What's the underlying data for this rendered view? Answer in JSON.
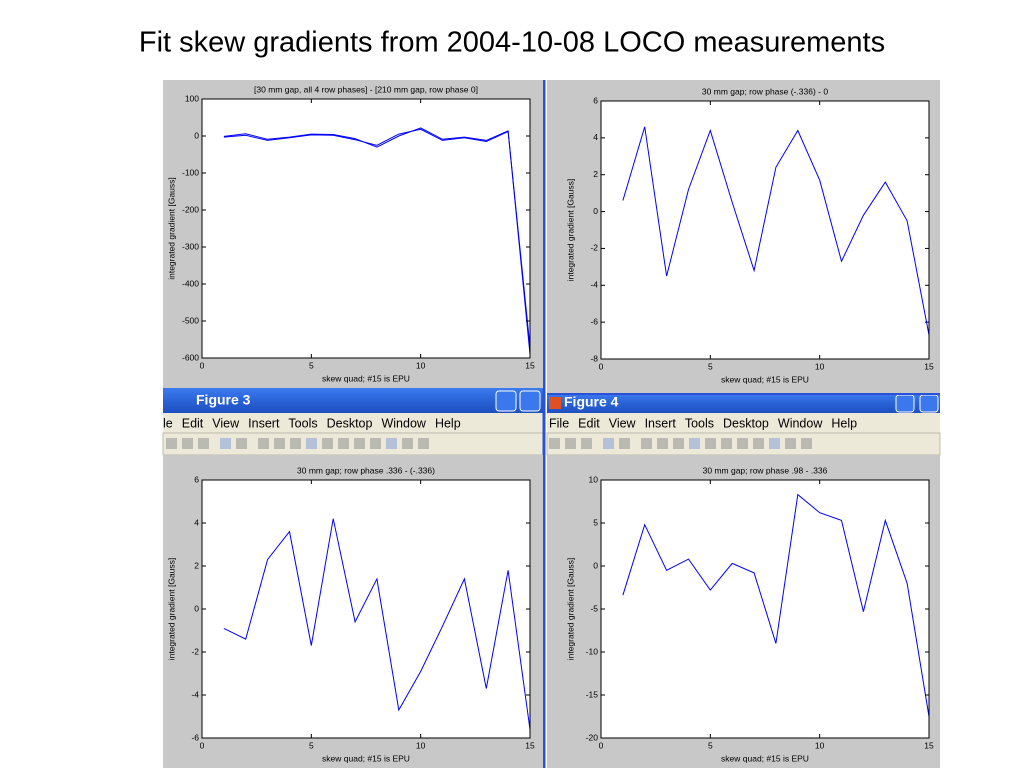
{
  "slide_title": "Fit skew gradients from 2004-10-08 LOCO measurements",
  "windows": [
    {
      "title": "Figure 3",
      "menu": [
        "le",
        "Edit",
        "View",
        "Insert",
        "Tools",
        "Desktop",
        "Window",
        "Help"
      ]
    },
    {
      "title": "Figure 4",
      "menu": [
        "File",
        "Edit",
        "View",
        "Insert",
        "Tools",
        "Desktop",
        "Window",
        "Help"
      ]
    }
  ],
  "chart_data": [
    {
      "type": "line",
      "title": "[30 mm gap, all 4 row phases] - [210 mm gap, row phase 0]",
      "x_label": "skew quad; #15 is EPU",
      "y_label": "integrated gradient [Gauss]",
      "x": [
        1,
        2,
        3,
        4,
        5,
        6,
        7,
        8,
        9,
        10,
        11,
        12,
        13,
        14,
        15
      ],
      "series": [
        {
          "color": "#0000ff",
          "values": [
            -3,
            2,
            -12,
            -5,
            3,
            2,
            -10,
            -25,
            5,
            18,
            -12,
            -5,
            -15,
            12,
            -570
          ]
        },
        {
          "color": "#0000ff",
          "values": [
            -1,
            6,
            -9,
            -3,
            5,
            4,
            -7,
            -30,
            0,
            22,
            -9,
            -3,
            -12,
            14,
            -590
          ]
        }
      ],
      "xlim": [
        0,
        15
      ],
      "xticks": [
        0,
        5,
        10,
        15
      ],
      "ylim": [
        -600,
        100
      ],
      "yticks": [
        -600,
        -500,
        -400,
        -300,
        -200,
        -100,
        0,
        100
      ]
    },
    {
      "type": "line",
      "title": "30 mm gap; row phase (-.336) - 0",
      "x_label": "skew quad; #15 is EPU",
      "y_label": "integrated gradient [Gauss]",
      "x": [
        1,
        2,
        3,
        4,
        5,
        6,
        7,
        8,
        9,
        10,
        11,
        12,
        13,
        14,
        15
      ],
      "series": [
        {
          "color": "#0000ff",
          "values": [
            0.6,
            4.6,
            -3.5,
            1.2,
            4.4,
            0.5,
            -3.2,
            2.4,
            4.4,
            1.7,
            -2.7,
            -0.2,
            1.6,
            -0.5,
            -6.7
          ]
        }
      ],
      "xlim": [
        0,
        15
      ],
      "xticks": [
        0,
        5,
        10,
        15
      ],
      "ylim": [
        -8,
        6
      ],
      "yticks": [
        -8,
        -6,
        -4,
        -2,
        0,
        2,
        4,
        6
      ]
    },
    {
      "type": "line",
      "title": "30 mm gap; row phase .336 - (-.336)",
      "x_label": "skew quad; #15 is EPU",
      "y_label": "integrated gradient [Gauss]",
      "x": [
        1,
        2,
        3,
        4,
        5,
        6,
        7,
        8,
        9,
        10,
        11,
        12,
        13,
        14,
        15
      ],
      "series": [
        {
          "color": "#0000ff",
          "values": [
            -0.9,
            -1.4,
            2.3,
            3.6,
            -1.7,
            4.2,
            -0.6,
            1.4,
            -4.7,
            -2.9,
            -0.8,
            1.4,
            -3.7,
            1.8,
            -5.6
          ]
        }
      ],
      "xlim": [
        0,
        15
      ],
      "xticks": [
        0,
        5,
        10,
        15
      ],
      "ylim": [
        -6,
        6
      ],
      "yticks": [
        -6,
        -4,
        -2,
        0,
        2,
        4,
        6
      ]
    },
    {
      "type": "line",
      "title": "30 mm gap; row phase .98 - .336",
      "x_label": "skew quad; #15 is EPU",
      "y_label": "integrated gradient [Gauss]",
      "x": [
        1,
        2,
        3,
        4,
        5,
        6,
        7,
        8,
        9,
        10,
        11,
        12,
        13,
        14,
        15
      ],
      "series": [
        {
          "color": "#0000ff",
          "values": [
            -3.4,
            4.8,
            -0.5,
            0.8,
            -2.8,
            0.3,
            -0.8,
            -9,
            8.3,
            6.2,
            5.3,
            -5.3,
            5.3,
            -2,
            -17.5
          ]
        }
      ],
      "xlim": [
        0,
        15
      ],
      "xticks": [
        0,
        5,
        10,
        15
      ],
      "ylim": [
        -20,
        10
      ],
      "yticks": [
        -20,
        -15,
        -10,
        -5,
        0,
        5,
        10
      ]
    }
  ]
}
